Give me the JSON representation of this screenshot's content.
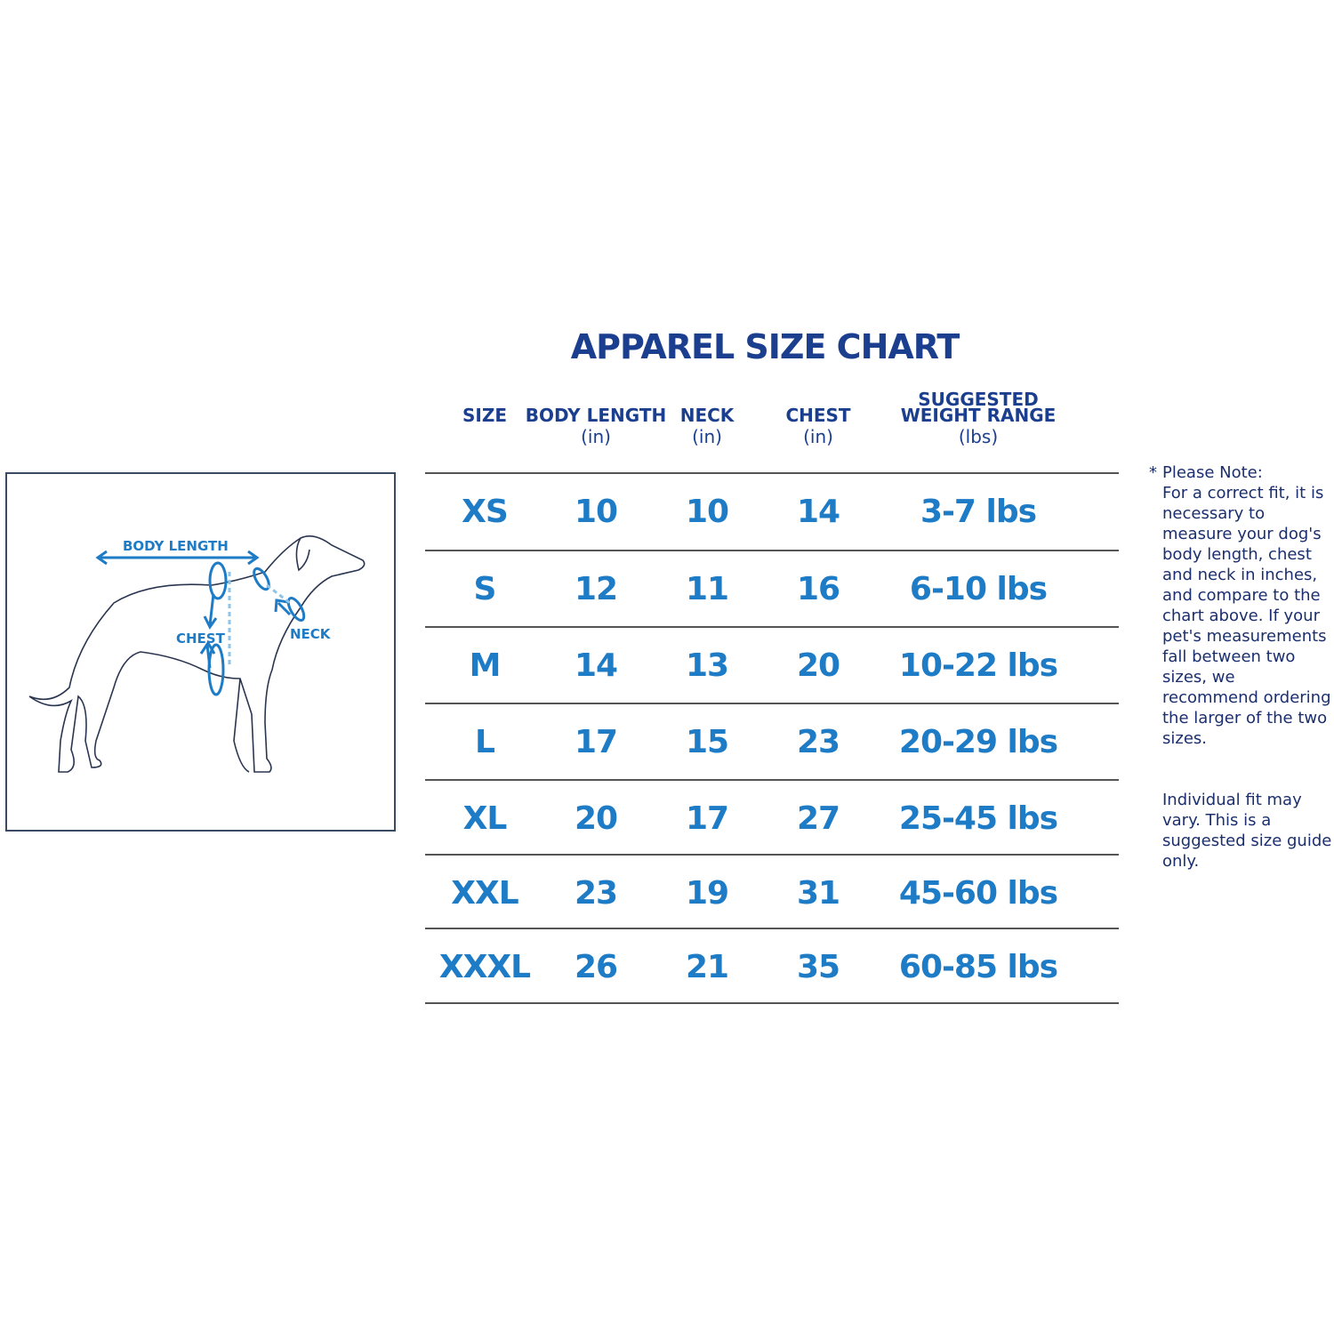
{
  "title": "APPAREL SIZE  CHART",
  "headers": [
    {
      "label": "SIZE",
      "unit": ""
    },
    {
      "label": "BODY LENGTH",
      "unit": "(in)"
    },
    {
      "label": "NECK",
      "unit": "(in)"
    },
    {
      "label": "CHEST",
      "unit": "(in)"
    },
    {
      "label": "SUGGESTED WEIGHT RANGE",
      "unit": "(lbs)"
    }
  ],
  "rows": [
    [
      "XS",
      "10",
      "10",
      "14",
      "3-7 lbs"
    ],
    [
      "S",
      "12",
      "11",
      "16",
      "6-10 lbs"
    ],
    [
      "M",
      "14",
      "13",
      "20",
      "10-22 lbs"
    ],
    [
      "L",
      "17",
      "15",
      "23",
      "20-29 lbs"
    ],
    [
      "XL",
      "20",
      "17",
      "27",
      "25-45 lbs"
    ],
    [
      "XXL",
      "23",
      "19",
      "31",
      "45-60 lbs"
    ],
    [
      "XXXL",
      "26",
      "21",
      "35",
      "60-85 lbs"
    ]
  ],
  "diagram": {
    "body_length": "BODY LENGTH",
    "chest": "CHEST",
    "neck": "NECK"
  },
  "note": {
    "asterisk": "*",
    "heading": "Please Note:",
    "body": "For a correct fit, it is necessary to measure your dog's body length, chest and neck in inches, and compare to the chart above. If your pet's measurements fall between two sizes, we recommend ordering the larger of the two sizes.",
    "disclaimer": "Individual fit may vary. This is a suggested size guide only."
  },
  "colors": {
    "title": "#1b3f8e",
    "values": "#1e7bc6",
    "note": "#1b2f6e"
  }
}
